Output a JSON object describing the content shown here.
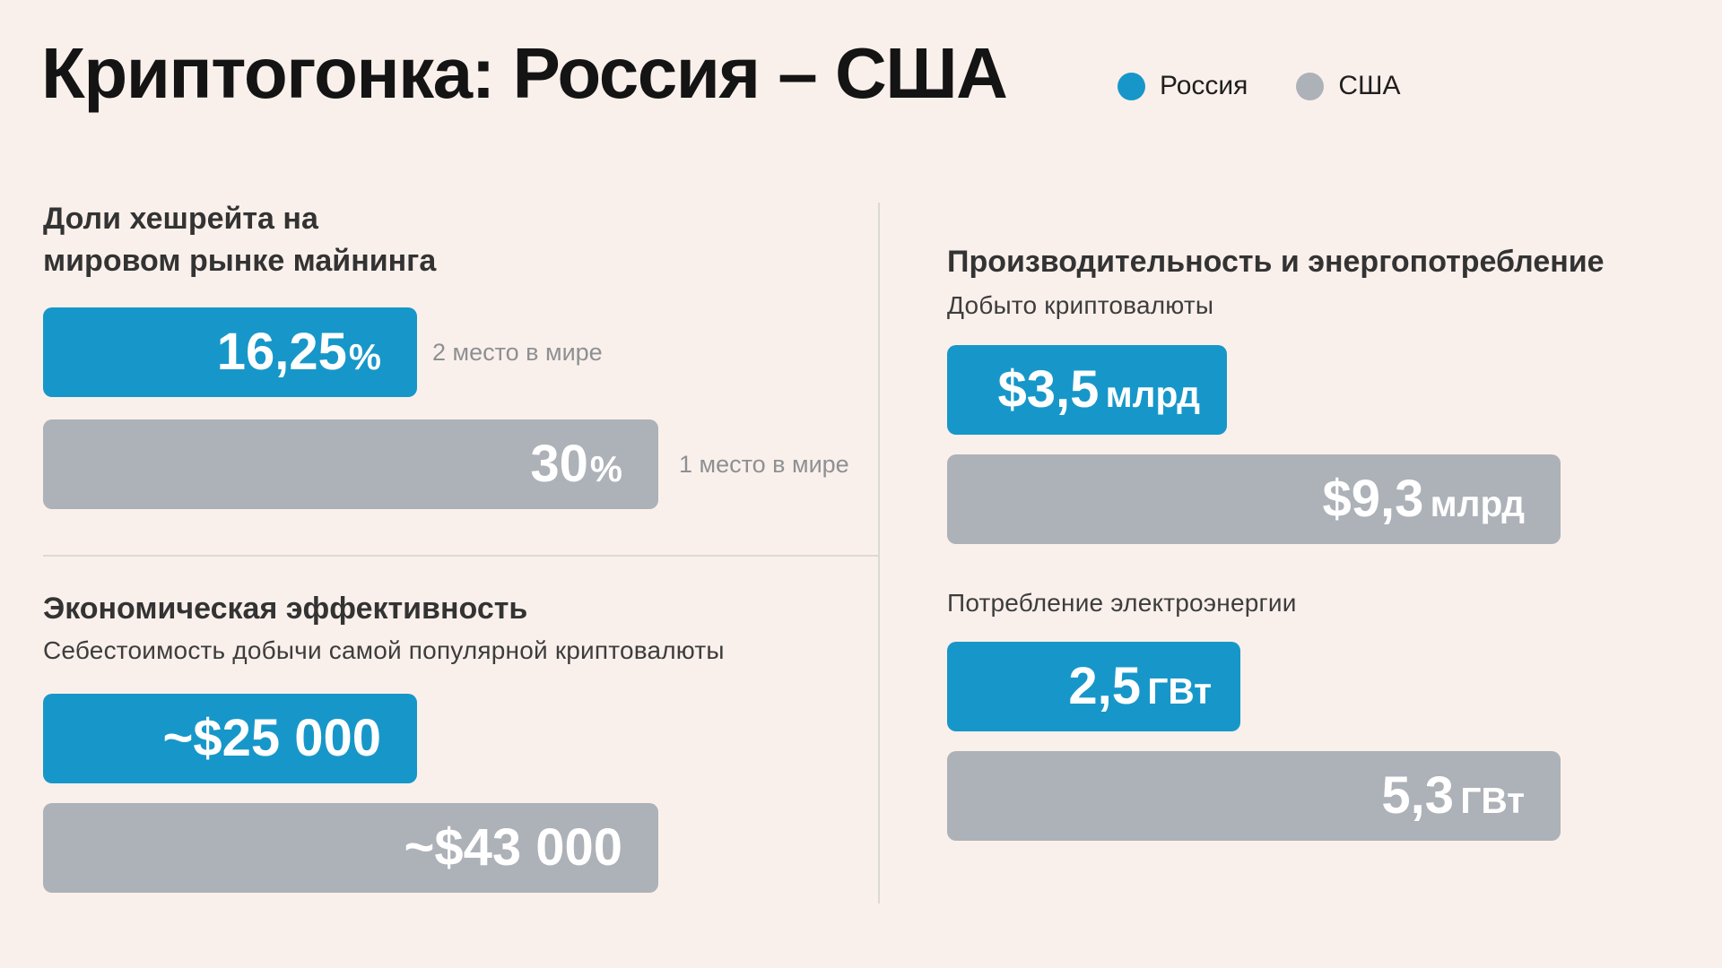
{
  "title": "Криптогонка: Россия – США",
  "legend": {
    "russia": "Россия",
    "usa": "США"
  },
  "colors": {
    "russia": "#1797C9",
    "usa": "#ADB1B8",
    "background": "#FAF0EB"
  },
  "hashrate": {
    "heading_line1": "Доли хешрейта на",
    "heading_line2": "мировом рынке майнинга",
    "russia": {
      "value": "16,25",
      "unit": "%",
      "note": "2 место в мире"
    },
    "usa": {
      "value": "30",
      "unit": "%",
      "note": "1 место в мире"
    }
  },
  "economy": {
    "heading": "Экономическая эффективность",
    "subtitle": "Себестоимость добычи самой популярной криптовалюты",
    "russia": {
      "value": "~$25 000"
    },
    "usa": {
      "value": "~$43 000"
    }
  },
  "performance": {
    "heading": "Производительность и энергопотребление",
    "mined": {
      "subtitle": "Добыто криптовалюты",
      "russia": {
        "value": "$3,5",
        "unit": "млрд"
      },
      "usa": {
        "value": "$9,3",
        "unit": "млрд"
      }
    },
    "power": {
      "subtitle": "Потребление электроэнергии",
      "russia": {
        "value": "2,5",
        "unit": "ГВт"
      },
      "usa": {
        "value": "5,3",
        "unit": "ГВт"
      }
    }
  },
  "chart_data": [
    {
      "type": "bar",
      "orientation": "horizontal",
      "title": "Доли хешрейта на мировом рынке майнинга",
      "categories": [
        "Россия",
        "США"
      ],
      "values": [
        16.25,
        30
      ],
      "unit": "%",
      "value_labels": [
        "16,25%",
        "30%"
      ],
      "annotations": [
        "2 место в мире",
        "1 место в мире"
      ],
      "legend": [
        "Россия",
        "США"
      ],
      "legend_position": "top-right"
    },
    {
      "type": "bar",
      "orientation": "horizontal",
      "title": "Экономическая эффективность",
      "subtitle": "Себестоимость добычи самой популярной криптовалюты",
      "categories": [
        "Россия",
        "США"
      ],
      "values": [
        25000,
        43000
      ],
      "unit": "USD",
      "value_labels": [
        "~$25 000",
        "~$43 000"
      ]
    },
    {
      "type": "bar",
      "orientation": "horizontal",
      "title": "Добыто криптовалюты",
      "categories": [
        "Россия",
        "США"
      ],
      "values": [
        3.5,
        9.3
      ],
      "unit": "млрд USD",
      "value_labels": [
        "$3,5 млрд",
        "$9,3 млрд"
      ]
    },
    {
      "type": "bar",
      "orientation": "horizontal",
      "title": "Потребление электроэнергии",
      "categories": [
        "Россия",
        "США"
      ],
      "values": [
        2.5,
        5.3
      ],
      "unit": "ГВт",
      "value_labels": [
        "2,5 ГВт",
        "5,3 ГВт"
      ]
    }
  ]
}
